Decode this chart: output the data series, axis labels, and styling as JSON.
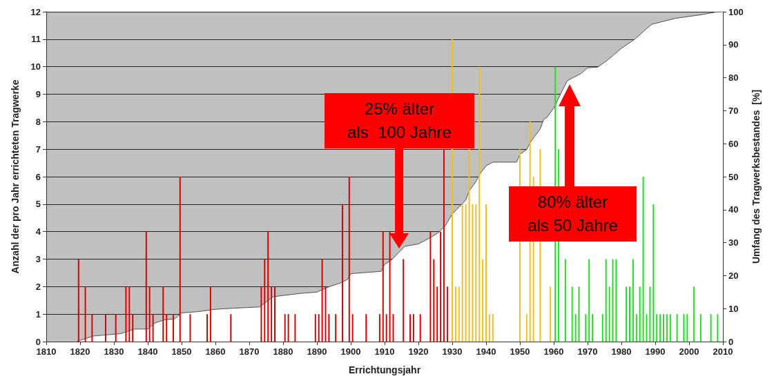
{
  "chart_data": {
    "type": "bar",
    "xlabel": "Errichtungsjahr",
    "ylabel": "Anzahl der pro Jahr errichteten Tragwerke",
    "y2label": "Umfang des Tragwerksbestandes  [%]",
    "xlim": [
      1810,
      2010
    ],
    "xticks": [
      1810,
      1820,
      1830,
      1840,
      1850,
      1860,
      1870,
      1880,
      1890,
      1900,
      1910,
      1920,
      1930,
      1940,
      1950,
      1960,
      1970,
      1980,
      1990,
      2000,
      2010
    ],
    "ylim": [
      0,
      12
    ],
    "yticks": [
      0,
      1,
      2,
      3,
      4,
      5,
      6,
      7,
      8,
      9,
      10,
      11,
      12
    ],
    "y2lim": [
      0,
      100
    ],
    "y2ticks": [
      0,
      10,
      20,
      30,
      40,
      50,
      60,
      70,
      80,
      90,
      100
    ],
    "grid": "y",
    "series": [
      {
        "type": "area",
        "axis": "y2",
        "color": "#505050",
        "x": [
          1819,
          1820,
          1824,
          1832,
          1836,
          1840,
          1842,
          1845,
          1848,
          1850,
          1855,
          1860,
          1865,
          1873,
          1877,
          1885,
          1890,
          1893,
          1897,
          1899,
          1900,
          1909,
          1910,
          1912,
          1916,
          1920,
          1924,
          1926,
          1928,
          1930,
          1932,
          1934,
          1935,
          1937,
          1938,
          1940,
          1942,
          1949,
          1950,
          1952,
          1953,
          1956,
          1957,
          1958,
          1960,
          1962,
          1964,
          1968,
          1970,
          1973,
          1976,
          1980,
          1984,
          1987,
          1989,
          1996,
          2003,
          2008,
          2010
        ],
        "values": [
          0,
          0.4,
          1.7,
          2.4,
          3.8,
          3.8,
          5.6,
          6.6,
          6.9,
          8.7,
          9.1,
          9.8,
          10.1,
          10.5,
          13.6,
          14.6,
          15,
          16.4,
          17.8,
          18.8,
          20.6,
          21.3,
          23.4,
          24.7,
          28.9,
          29.6,
          31.8,
          33.1,
          35.2,
          38.7,
          40.8,
          42.9,
          45.7,
          48.5,
          50.6,
          53.3,
          54.4,
          54.4,
          56.8,
          58.2,
          60.3,
          64.5,
          67.3,
          68,
          70.8,
          75,
          79.1,
          81.2,
          83,
          83.2,
          85.4,
          88.9,
          91.7,
          94.5,
          96.2,
          98,
          99,
          99.9,
          100
        ]
      },
      {
        "color": "#e00000",
        "x": [
          1820,
          1822,
          1824,
          1828,
          1831,
          1834,
          1835,
          1836,
          1840,
          1841,
          1842,
          1845,
          1846,
          1848,
          1850,
          1853,
          1858,
          1859,
          1865,
          1874,
          1875,
          1876,
          1877,
          1878,
          1881,
          1882,
          1884,
          1890,
          1891,
          1892,
          1893,
          1894,
          1896,
          1898,
          1900,
          1901,
          1905,
          1909,
          1910,
          1911,
          1912,
          1913,
          1914,
          1915,
          1916,
          1918,
          1919,
          1921,
          1924,
          1925,
          1926,
          1927,
          1928,
          1929
        ],
        "values": [
          3,
          2,
          1,
          1,
          1,
          2,
          2,
          1,
          4,
          2,
          1,
          2,
          1,
          1,
          6,
          1,
          1,
          2,
          1,
          2,
          3,
          4,
          2,
          2,
          1,
          1,
          1,
          1,
          1,
          3,
          2,
          1,
          1,
          5,
          6,
          1,
          1,
          1,
          4,
          1,
          4,
          1,
          null,
          null,
          3,
          1,
          1,
          1,
          4,
          3,
          2,
          4,
          7,
          2
        ]
      },
      {
        "color": "#f0c020",
        "x": [
          1930,
          1931,
          1932,
          1933,
          1934,
          1935,
          1936,
          1937,
          1938,
          1939,
          1940,
          1941,
          1942,
          1950,
          1951,
          1952,
          1953,
          1954,
          1955,
          1956,
          1957,
          1958,
          1959
        ],
        "values": [
          11,
          2,
          2,
          5,
          5,
          7,
          5,
          5,
          10,
          3,
          5,
          1,
          1,
          7,
          null,
          1,
          8,
          6,
          null,
          7,
          null,
          null,
          2
        ]
      },
      {
        "color": "#20e020",
        "x": [
          1960,
          1961,
          1962,
          1963,
          1964,
          1965,
          1966,
          1967,
          1968,
          1969,
          1970,
          1971,
          1974,
          1975,
          1976,
          1977,
          1978,
          1979,
          1980,
          1981,
          1982,
          1983,
          1984,
          1985,
          1986,
          1987,
          1988,
          1989,
          1990,
          1991,
          1992,
          1993,
          1994,
          1996,
          1998,
          1999,
          2001,
          2003,
          2006,
          2008
        ],
        "values": [
          10,
          7,
          null,
          3,
          null,
          2,
          1,
          2,
          null,
          1,
          3,
          1,
          1,
          3,
          2,
          3,
          3,
          null,
          null,
          2,
          2,
          3,
          1,
          2,
          6,
          1,
          2,
          5,
          1,
          1,
          1,
          1,
          1,
          1,
          1,
          1,
          2,
          1,
          1,
          1
        ]
      }
    ],
    "annotations": [
      "25% älter\nals  100 Jahre",
      "80% älter\nals 50 Jahre"
    ]
  }
}
